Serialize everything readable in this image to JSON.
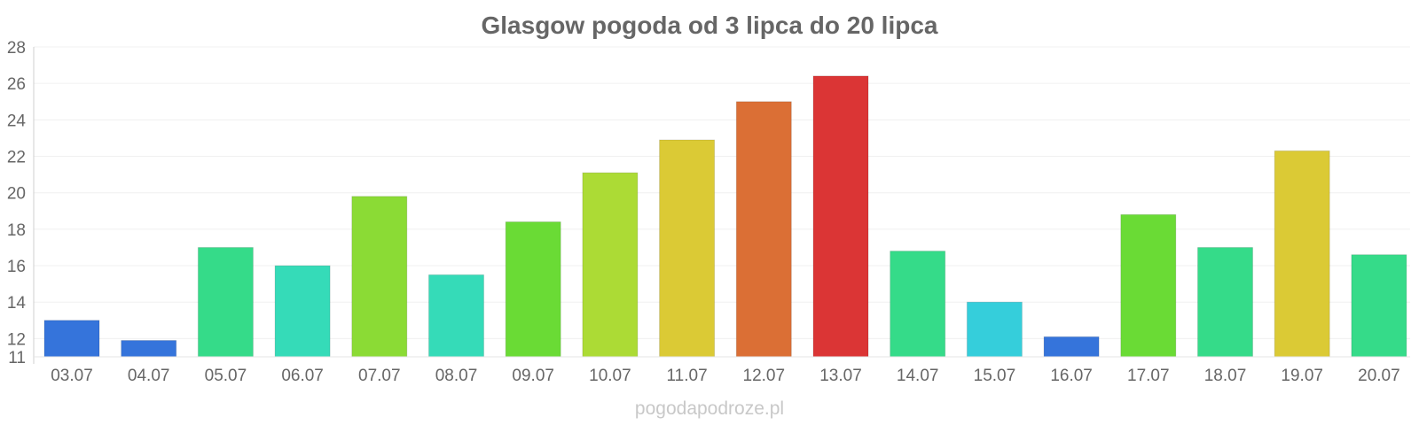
{
  "chart_data": {
    "type": "bar",
    "title": "Glasgow pogoda od 3 lipca do 20 lipca",
    "xlabel": "",
    "ylabel": "",
    "categories": [
      "03.07",
      "04.07",
      "05.07",
      "06.07",
      "07.07",
      "08.07",
      "09.07",
      "10.07",
      "11.07",
      "12.07",
      "13.07",
      "14.07",
      "15.07",
      "16.07",
      "17.07",
      "18.07",
      "19.07",
      "20.07"
    ],
    "values": [
      13.0,
      11.9,
      17.0,
      16.0,
      19.8,
      15.5,
      18.4,
      21.1,
      22.9,
      25.0,
      26.4,
      16.8,
      14.0,
      12.1,
      18.8,
      17.0,
      22.3,
      16.6
    ],
    "colors": [
      "#3574db",
      "#3574db",
      "#35db89",
      "#35dbb8",
      "#8bdb35",
      "#35dbb8",
      "#6adb35",
      "#acdb35",
      "#dbca35",
      "#db6f35",
      "#db3535",
      "#35db89",
      "#35cedb",
      "#3574db",
      "#6adb35",
      "#35db89",
      "#dbca35",
      "#35db89"
    ],
    "ylim": [
      11,
      28
    ],
    "yticks": [
      11,
      12,
      14,
      16,
      18,
      20,
      22,
      24,
      26,
      28
    ],
    "grid": true,
    "legend": "none"
  },
  "watermark": "pogodapodroze.pl"
}
